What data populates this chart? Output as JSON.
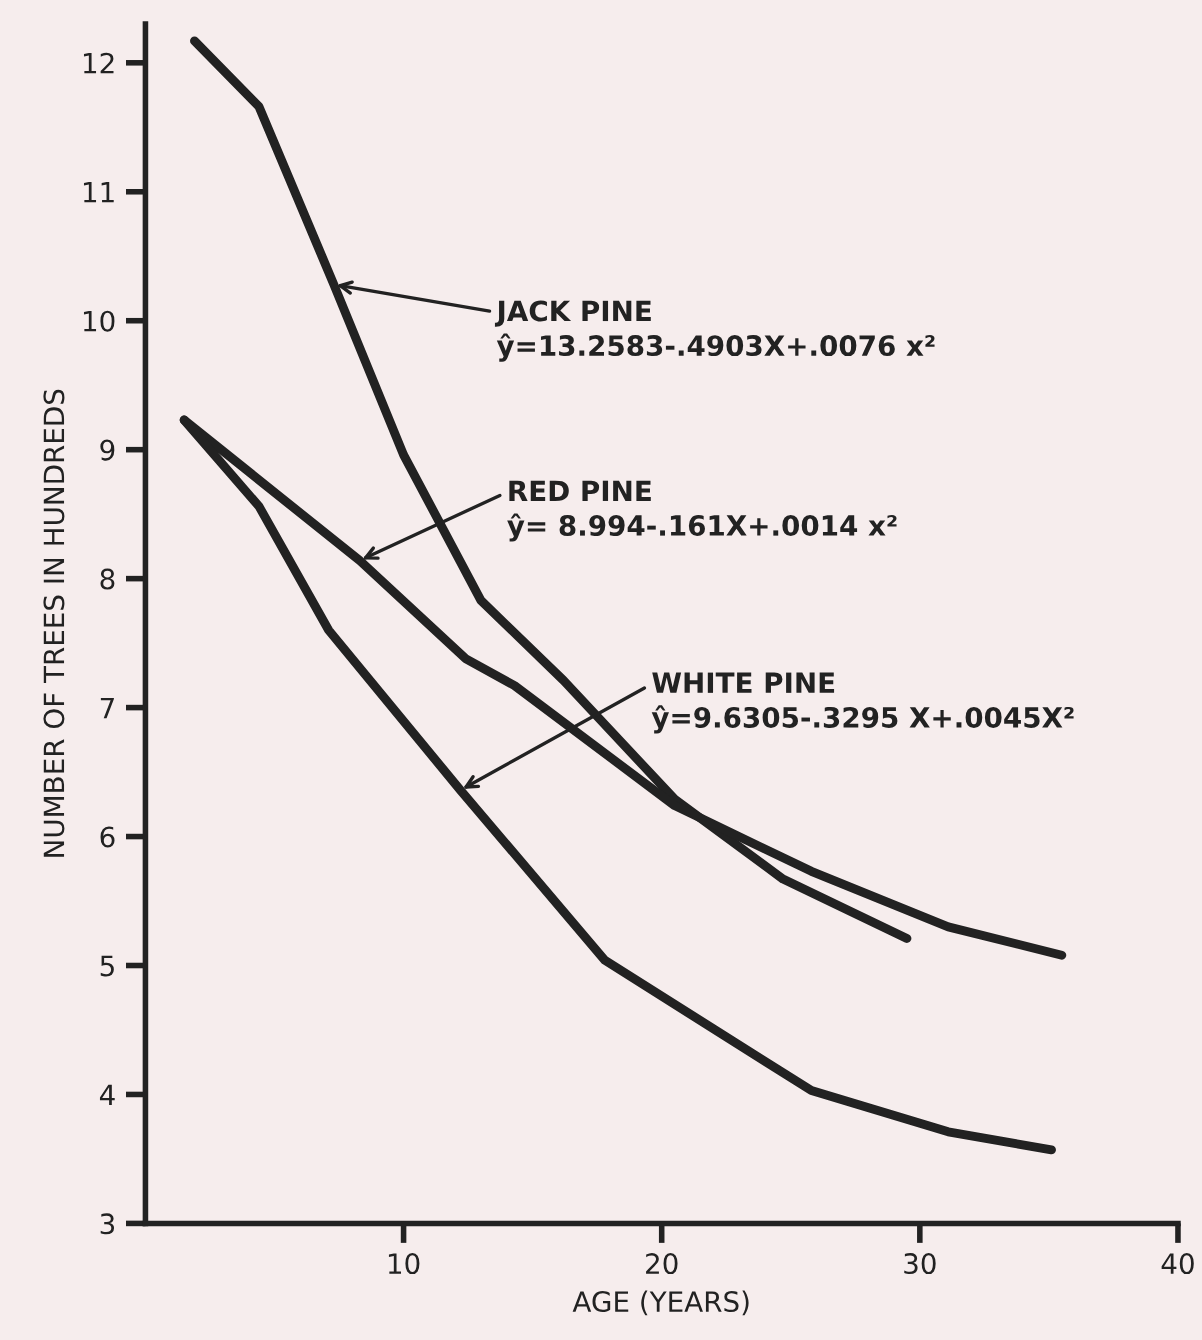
{
  "chart_data": {
    "type": "line",
    "xlabel": "AGE (YEARS)",
    "ylabel": "NUMBER OF TREES IN HUNDREDS",
    "xlim": [
      0,
      40
    ],
    "xticks": [
      10,
      20,
      30,
      40
    ],
    "ylim": [
      3,
      12.3
    ],
    "yticks": [
      3,
      4,
      5,
      6,
      7,
      8,
      9,
      10,
      11,
      12
    ],
    "grid": false,
    "legend": false,
    "marker": "none",
    "line_style": "solid",
    "series": [
      {
        "color": "#222222",
        "x": [
          1.9,
          4.4,
          7.3,
          10,
          13,
          16.2,
          20.5,
          24.7,
          29.5
        ],
        "values": [
          12.17,
          11.66,
          10.28,
          8.96,
          7.83,
          7.21,
          6.29,
          5.67,
          5.21
        ]
      },
      {
        "color": "#222222",
        "x": [
          1.5,
          8.3,
          12.4,
          14.3,
          20.5,
          25.8,
          31.1,
          35.5
        ],
        "values": [
          9.23,
          8.14,
          7.38,
          7.17,
          6.24,
          5.73,
          5.3,
          5.08
        ]
      },
      {
        "color": "#222222",
        "x": [
          1.5,
          4.4,
          7.1,
          12.2,
          17.8,
          25.8,
          31.1,
          35.1
        ],
        "values": [
          9.23,
          8.56,
          7.6,
          6.36,
          5.04,
          4.03,
          3.71,
          3.57
        ]
      }
    ],
    "annotations": [
      {
        "text": "JACK PINE\nŷ=13.2583-.4903X+.0076 x²",
        "x": 7.3,
        "y": 10.28
      },
      {
        "text": "RED PINE\nŷ= 8.994-.161X+.0014 x²",
        "x": 8.3,
        "y": 8.14
      },
      {
        "text": "WHITE PINE\nŷ=9.6305-.3295 X+.0045X²",
        "x": 12.2,
        "y": 6.36
      }
    ]
  }
}
